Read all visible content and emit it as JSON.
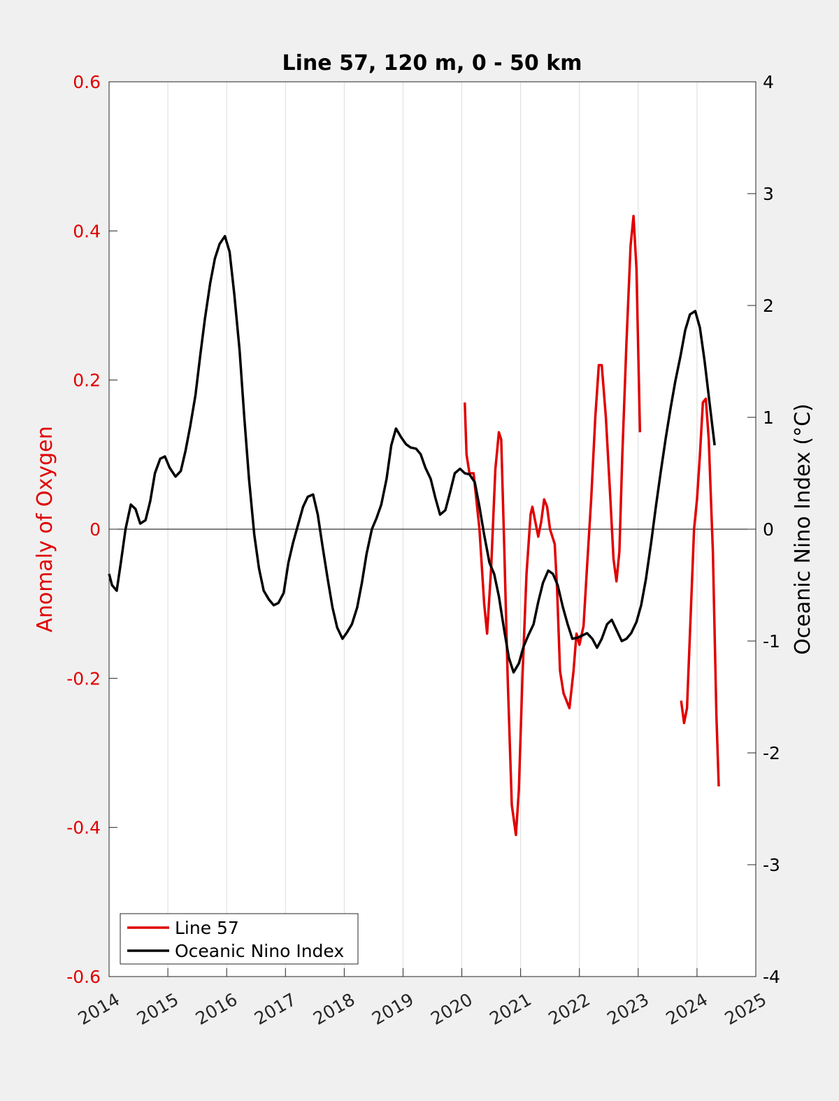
{
  "chart_data": {
    "type": "line",
    "title": "Line 57, 120 m, 0 - 50 km",
    "xlabel": "",
    "ylabel_left": "Anomaly of Oxygen",
    "ylabel_right": "Oceanic Nino Index (°C)",
    "xlim": [
      2014,
      2025
    ],
    "ylim_left": [
      -0.6,
      0.6
    ],
    "ylim_right": [
      -4,
      4
    ],
    "x_ticks": [
      "2014",
      "2015",
      "2016",
      "2017",
      "2018",
      "2019",
      "2020",
      "2021",
      "2022",
      "2023",
      "2024",
      "2025"
    ],
    "y_ticks_left": [
      "-0.6",
      "-0.4",
      "-0.2",
      "0",
      "0.2",
      "0.4",
      "0.6"
    ],
    "y_ticks_right": [
      "-4",
      "-3",
      "-2",
      "-1",
      "0",
      "1",
      "2",
      "3",
      "4"
    ],
    "grid_x": true,
    "zero_line": true,
    "legend_position": "bottom-left",
    "colors": {
      "line57": "#e00000",
      "oni": "#000000",
      "left_axis": "#e00000",
      "right_axis": "#000000"
    },
    "series": [
      {
        "name": "Line 57",
        "axis": "left",
        "segments": [
          [
            [
              2020.05,
              0.17
            ],
            [
              2020.08,
              0.1
            ],
            [
              2020.13,
              0.075
            ],
            [
              2020.2,
              0.075
            ],
            [
              2020.3,
              0.0
            ],
            [
              2020.38,
              -0.1
            ],
            [
              2020.43,
              -0.14
            ],
            [
              2020.5,
              -0.05
            ],
            [
              2020.57,
              0.08
            ],
            [
              2020.63,
              0.13
            ],
            [
              2020.67,
              0.12
            ],
            [
              2020.72,
              -0.02
            ],
            [
              2020.78,
              -0.2
            ],
            [
              2020.85,
              -0.37
            ],
            [
              2020.92,
              -0.41
            ],
            [
              2020.97,
              -0.35
            ],
            [
              2021.03,
              -0.2
            ],
            [
              2021.1,
              -0.06
            ],
            [
              2021.17,
              0.02
            ],
            [
              2021.2,
              0.03
            ],
            [
              2021.25,
              0.01
            ],
            [
              2021.3,
              -0.01
            ],
            [
              2021.35,
              0.01
            ],
            [
              2021.4,
              0.04
            ],
            [
              2021.45,
              0.03
            ],
            [
              2021.5,
              0.0
            ],
            [
              2021.58,
              -0.02
            ],
            [
              2021.62,
              -0.08
            ],
            [
              2021.67,
              -0.19
            ],
            [
              2021.73,
              -0.22
            ],
            [
              2021.78,
              -0.23
            ],
            [
              2021.83,
              -0.24
            ],
            [
              2021.9,
              -0.19
            ],
            [
              2021.95,
              -0.14
            ],
            [
              2022.0,
              -0.155
            ],
            [
              2022.07,
              -0.13
            ],
            [
              2022.13,
              -0.05
            ],
            [
              2022.2,
              0.04
            ],
            [
              2022.27,
              0.15
            ],
            [
              2022.33,
              0.22
            ],
            [
              2022.38,
              0.22
            ],
            [
              2022.45,
              0.15
            ],
            [
              2022.52,
              0.05
            ],
            [
              2022.58,
              -0.04
            ],
            [
              2022.63,
              -0.07
            ],
            [
              2022.68,
              -0.03
            ],
            [
              2022.73,
              0.1
            ],
            [
              2022.8,
              0.25
            ],
            [
              2022.87,
              0.38
            ],
            [
              2022.92,
              0.42
            ],
            [
              2022.97,
              0.35
            ],
            [
              2023.03,
              0.13
            ]
          ],
          [
            [
              2023.73,
              -0.23
            ],
            [
              2023.78,
              -0.26
            ],
            [
              2023.83,
              -0.24
            ],
            [
              2023.9,
              -0.1
            ],
            [
              2023.95,
              0.0
            ],
            [
              2024.0,
              0.04
            ],
            [
              2024.05,
              0.1
            ],
            [
              2024.1,
              0.17
            ],
            [
              2024.15,
              0.175
            ],
            [
              2024.2,
              0.12
            ],
            [
              2024.27,
              -0.03
            ],
            [
              2024.33,
              -0.25
            ],
            [
              2024.37,
              -0.345
            ]
          ]
        ]
      },
      {
        "name": "Oceanic Nino Index",
        "axis": "right",
        "segments": [
          [
            [
              2014.0,
              -0.4
            ],
            [
              2014.05,
              -0.5
            ],
            [
              2014.13,
              -0.55
            ],
            [
              2014.2,
              -0.3
            ],
            [
              2014.28,
              0.0
            ],
            [
              2014.37,
              0.22
            ],
            [
              2014.45,
              0.18
            ],
            [
              2014.53,
              0.05
            ],
            [
              2014.62,
              0.08
            ],
            [
              2014.7,
              0.25
            ],
            [
              2014.78,
              0.5
            ],
            [
              2014.87,
              0.63
            ],
            [
              2014.95,
              0.65
            ],
            [
              2015.03,
              0.55
            ],
            [
              2015.13,
              0.47
            ],
            [
              2015.22,
              0.52
            ],
            [
              2015.3,
              0.7
            ],
            [
              2015.38,
              0.92
            ],
            [
              2015.47,
              1.2
            ],
            [
              2015.55,
              1.55
            ],
            [
              2015.63,
              1.88
            ],
            [
              2015.72,
              2.2
            ],
            [
              2015.8,
              2.42
            ],
            [
              2015.88,
              2.55
            ],
            [
              2015.97,
              2.62
            ],
            [
              2016.05,
              2.48
            ],
            [
              2016.13,
              2.1
            ],
            [
              2016.22,
              1.6
            ],
            [
              2016.3,
              1.0
            ],
            [
              2016.38,
              0.45
            ],
            [
              2016.47,
              -0.05
            ],
            [
              2016.55,
              -0.35
            ],
            [
              2016.63,
              -0.55
            ],
            [
              2016.72,
              -0.63
            ],
            [
              2016.8,
              -0.68
            ],
            [
              2016.88,
              -0.66
            ],
            [
              2016.97,
              -0.57
            ],
            [
              2017.05,
              -0.3
            ],
            [
              2017.13,
              -0.12
            ],
            [
              2017.22,
              0.05
            ],
            [
              2017.3,
              0.2
            ],
            [
              2017.38,
              0.29
            ],
            [
              2017.47,
              0.31
            ],
            [
              2017.55,
              0.13
            ],
            [
              2017.63,
              -0.15
            ],
            [
              2017.72,
              -0.45
            ],
            [
              2017.8,
              -0.7
            ],
            [
              2017.88,
              -0.88
            ],
            [
              2017.97,
              -0.98
            ],
            [
              2018.05,
              -0.92
            ],
            [
              2018.13,
              -0.85
            ],
            [
              2018.22,
              -0.7
            ],
            [
              2018.3,
              -0.48
            ],
            [
              2018.38,
              -0.22
            ],
            [
              2018.47,
              0.0
            ],
            [
              2018.55,
              0.1
            ],
            [
              2018.63,
              0.22
            ],
            [
              2018.72,
              0.45
            ],
            [
              2018.8,
              0.75
            ],
            [
              2018.88,
              0.9
            ],
            [
              2018.97,
              0.82
            ],
            [
              2019.05,
              0.76
            ],
            [
              2019.13,
              0.73
            ],
            [
              2019.22,
              0.72
            ],
            [
              2019.3,
              0.67
            ],
            [
              2019.38,
              0.55
            ],
            [
              2019.47,
              0.45
            ],
            [
              2019.55,
              0.28
            ],
            [
              2019.63,
              0.13
            ],
            [
              2019.72,
              0.17
            ],
            [
              2019.8,
              0.33
            ],
            [
              2019.88,
              0.5
            ],
            [
              2019.97,
              0.54
            ],
            [
              2020.05,
              0.5
            ],
            [
              2020.13,
              0.49
            ],
            [
              2020.22,
              0.42
            ],
            [
              2020.3,
              0.2
            ],
            [
              2020.38,
              -0.05
            ],
            [
              2020.47,
              -0.3
            ],
            [
              2020.55,
              -0.4
            ],
            [
              2020.63,
              -0.6
            ],
            [
              2020.72,
              -0.9
            ],
            [
              2020.8,
              -1.15
            ],
            [
              2020.88,
              -1.28
            ],
            [
              2020.97,
              -1.2
            ],
            [
              2021.05,
              -1.05
            ],
            [
              2021.13,
              -0.95
            ],
            [
              2021.22,
              -0.85
            ],
            [
              2021.3,
              -0.65
            ],
            [
              2021.38,
              -0.48
            ],
            [
              2021.47,
              -0.37
            ],
            [
              2021.55,
              -0.4
            ],
            [
              2021.63,
              -0.5
            ],
            [
              2021.72,
              -0.7
            ],
            [
              2021.8,
              -0.85
            ],
            [
              2021.88,
              -0.98
            ],
            [
              2021.97,
              -0.97
            ],
            [
              2022.05,
              -0.95
            ],
            [
              2022.13,
              -0.93
            ],
            [
              2022.22,
              -0.98
            ],
            [
              2022.3,
              -1.06
            ],
            [
              2022.38,
              -0.98
            ],
            [
              2022.47,
              -0.85
            ],
            [
              2022.55,
              -0.81
            ],
            [
              2022.63,
              -0.9
            ],
            [
              2022.72,
              -1.0
            ],
            [
              2022.8,
              -0.98
            ],
            [
              2022.88,
              -0.93
            ],
            [
              2022.97,
              -0.83
            ],
            [
              2023.05,
              -0.68
            ],
            [
              2023.13,
              -0.45
            ],
            [
              2023.22,
              -0.12
            ],
            [
              2023.3,
              0.2
            ],
            [
              2023.38,
              0.5
            ],
            [
              2023.47,
              0.82
            ],
            [
              2023.55,
              1.08
            ],
            [
              2023.63,
              1.32
            ],
            [
              2023.72,
              1.55
            ],
            [
              2023.8,
              1.78
            ],
            [
              2023.88,
              1.92
            ],
            [
              2023.97,
              1.95
            ],
            [
              2024.05,
              1.8
            ],
            [
              2024.13,
              1.5
            ],
            [
              2024.22,
              1.1
            ],
            [
              2024.3,
              0.75
            ]
          ]
        ]
      }
    ]
  }
}
